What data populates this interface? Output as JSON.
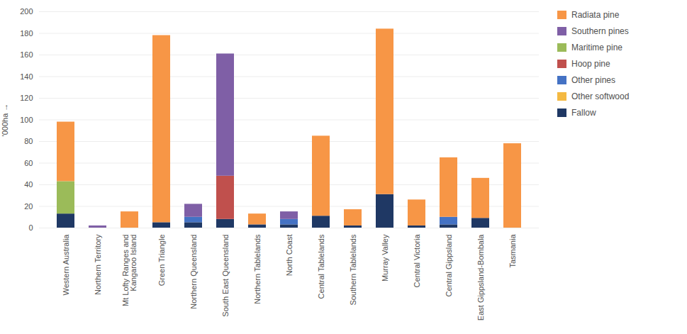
{
  "chart_data": {
    "type": "bar",
    "stacked": true,
    "categories": [
      "Western Australia",
      "Northern Territory",
      "Mt Lofty Ranges and\nKangaroo Island",
      "Green Triangle",
      "Northern Queensland",
      "South East Queensland",
      "Northern Tablelands",
      "North Coast",
      "Central Tablelands",
      "Southern Tablelands",
      "Murray Valley",
      "Central Victoria",
      "Central Gippsland",
      "East Gippsland-Bombala",
      "Tasmania"
    ],
    "series": [
      {
        "name": "Fallow",
        "color": "#1f3864",
        "values": [
          13,
          0,
          0,
          5,
          5,
          8,
          3,
          3,
          11,
          2,
          31,
          2,
          3,
          9,
          0
        ]
      },
      {
        "name": "Other softwood",
        "color": "#f4b942",
        "values": [
          0,
          0,
          0,
          0,
          0,
          0,
          0,
          0,
          0,
          0,
          0,
          0,
          0,
          0,
          0
        ]
      },
      {
        "name": "Other pines",
        "color": "#4472c4",
        "values": [
          0,
          0,
          0,
          0,
          5,
          0,
          0,
          5,
          0,
          0,
          0,
          0,
          7,
          0,
          0
        ]
      },
      {
        "name": "Hoop pine",
        "color": "#c0504d",
        "values": [
          0,
          0,
          0,
          0,
          0,
          40,
          0,
          0,
          0,
          0,
          0,
          0,
          0,
          0,
          0
        ]
      },
      {
        "name": "Maritime pine",
        "color": "#9bbb59",
        "values": [
          30,
          0,
          0,
          0,
          0,
          0,
          0,
          0,
          0,
          0,
          0,
          0,
          0,
          0,
          0
        ]
      },
      {
        "name": "Southern pines",
        "color": "#7f5fa6",
        "values": [
          0,
          2,
          0,
          0,
          12,
          113,
          0,
          7,
          0,
          0,
          0,
          0,
          0,
          0,
          0
        ]
      },
      {
        "name": "Radiata pine",
        "color": "#f79646",
        "values": [
          55,
          0,
          15,
          173,
          0,
          0,
          10,
          0,
          74,
          15,
          153,
          24,
          55,
          37,
          78
        ]
      }
    ],
    "ylabel": "'000ha",
    "ylim": [
      0,
      200
    ],
    "yticks": [
      0,
      20,
      40,
      60,
      80,
      100,
      120,
      140,
      160,
      180,
      200
    ],
    "grid": true,
    "legend": "right"
  }
}
